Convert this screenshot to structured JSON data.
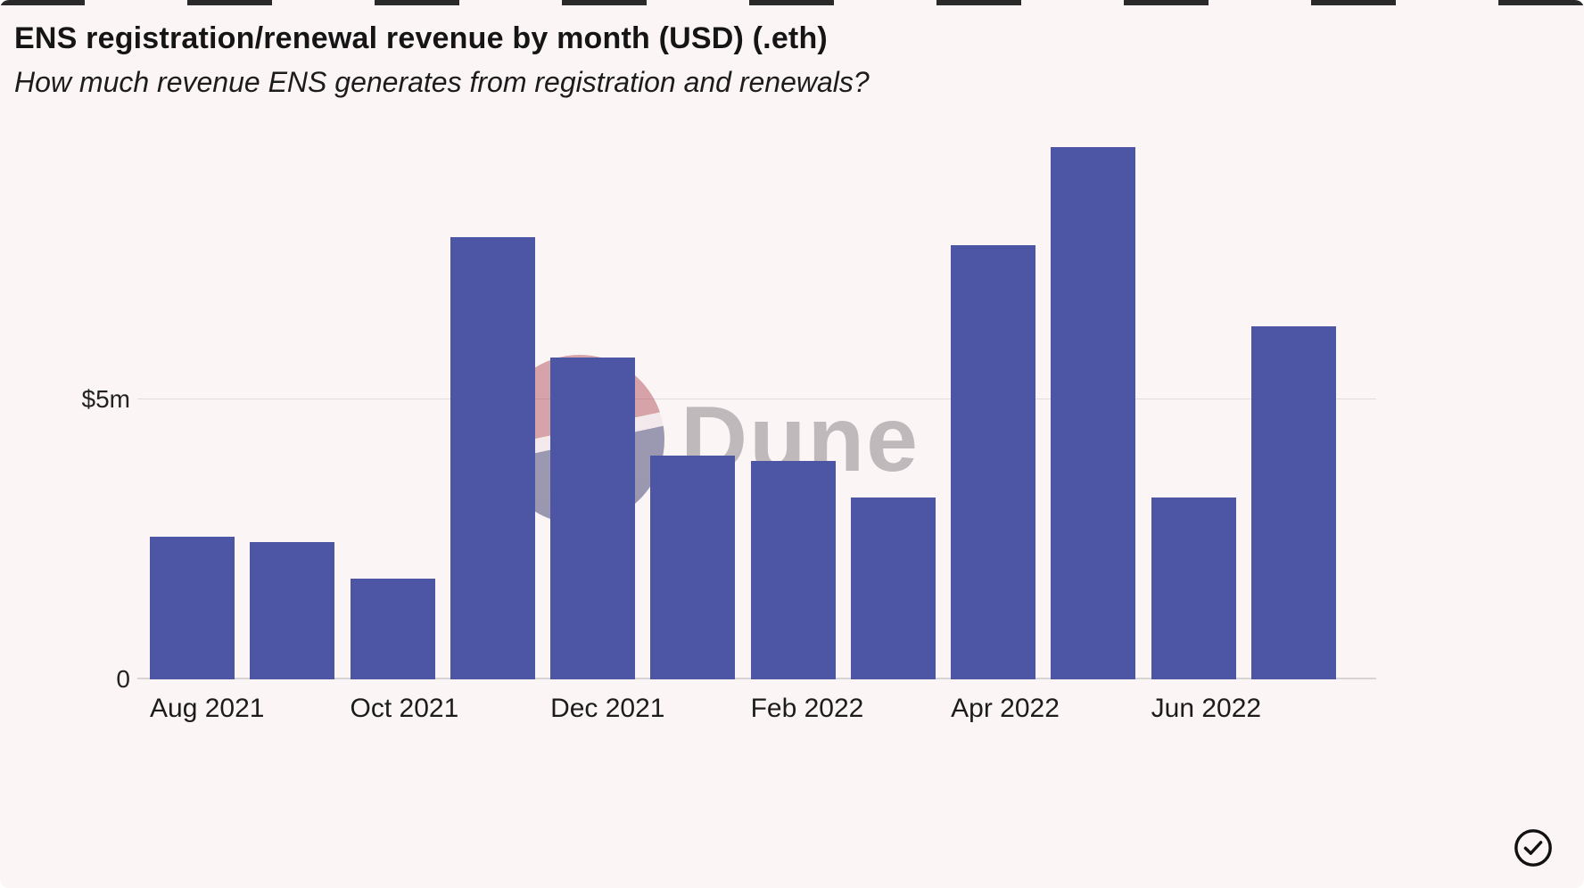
{
  "header": {
    "title": "ENS registration/renewal revenue by month (USD) (.eth)",
    "subtitle": "How much revenue ENS generates from registration and renewals?"
  },
  "chart_data": {
    "type": "bar",
    "title": "ENS registration/renewal revenue by month (USD) (.eth)",
    "subtitle": "How much revenue ENS generates from registration and renewals?",
    "categories": [
      "Aug 2021",
      "Sep 2021",
      "Oct 2021",
      "Nov 2021",
      "Dec 2021",
      "Jan 2022",
      "Feb 2022",
      "Mar 2022",
      "Apr 2022",
      "May 2022",
      "Jun 2022",
      "Jul 2022"
    ],
    "values": [
      2.55,
      2.45,
      1.8,
      7.9,
      5.75,
      4.0,
      3.9,
      3.25,
      7.75,
      9.5,
      3.25,
      6.3
    ],
    "unit": "million USD",
    "xlabel": "",
    "ylabel": "",
    "ylim": [
      0,
      9.9
    ],
    "y_ticks": [
      {
        "value": 0,
        "label": "0"
      },
      {
        "value": 5,
        "label": "$5m"
      }
    ],
    "x_tick_labels_shown": [
      "Aug 2021",
      "Oct 2021",
      "Dec 2021",
      "Feb 2022",
      "Apr 2022",
      "Jun 2022"
    ],
    "grid": "horizontal gridline at $5m only",
    "legend": "none",
    "bar_color": "#4d56a4",
    "background_color": "#fcf5f6"
  },
  "watermark": {
    "text": "Dune",
    "logo": "dune-pie-logo",
    "logo_top_color": "#a73b47",
    "logo_bottom_color": "#2b2d5e"
  },
  "footer": {
    "badge": "checkmark-circle"
  }
}
